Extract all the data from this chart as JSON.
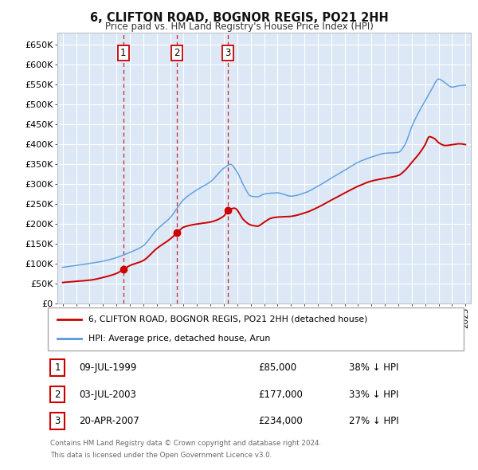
{
  "title": "6, CLIFTON ROAD, BOGNOR REGIS, PO21 2HH",
  "subtitle": "Price paid vs. HM Land Registry's House Price Index (HPI)",
  "ylim": [
    0,
    680000
  ],
  "yticks": [
    0,
    50000,
    100000,
    150000,
    200000,
    250000,
    300000,
    350000,
    400000,
    450000,
    500000,
    550000,
    600000,
    650000
  ],
  "ytick_labels": [
    "£0",
    "£50K",
    "£100K",
    "£150K",
    "£200K",
    "£250K",
    "£300K",
    "£350K",
    "£400K",
    "£450K",
    "£500K",
    "£550K",
    "£600K",
    "£650K"
  ],
  "xlim_start": 1994.6,
  "xlim_end": 2025.4,
  "plot_bg_color": "#dce8f5",
  "grid_color": "#ffffff",
  "transactions": [
    {
      "num": 1,
      "date": "09-JUL-1999",
      "price": 85000,
      "pct": "38%",
      "year_x": 1999.52
    },
    {
      "num": 2,
      "date": "03-JUL-2003",
      "price": 177000,
      "pct": "33%",
      "year_x": 2003.5
    },
    {
      "num": 3,
      "date": "20-APR-2007",
      "price": 234000,
      "pct": "27%",
      "year_x": 2007.3
    }
  ],
  "legend_red_label": "6, CLIFTON ROAD, BOGNOR REGIS, PO21 2HH (detached house)",
  "legend_blue_label": "HPI: Average price, detached house, Arun",
  "footer1": "Contains HM Land Registry data © Crown copyright and database right 2024.",
  "footer2": "This data is licensed under the Open Government Licence v3.0.",
  "red_color": "#cc0000",
  "blue_color": "#5599dd",
  "dot_color": "#cc0000",
  "dashed_color": "#cc0000"
}
